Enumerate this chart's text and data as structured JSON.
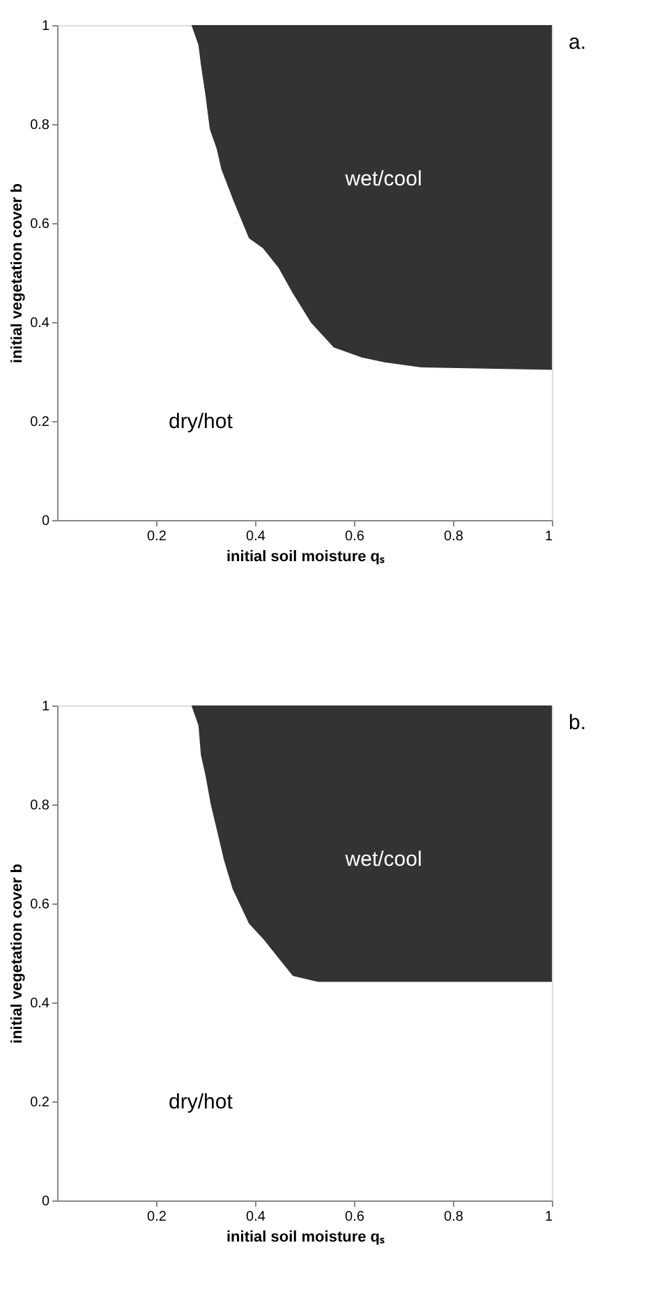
{
  "chart_data": [
    {
      "type": "line",
      "xlabel": "initial soil moisture qₛ",
      "ylabel": "initial vegetation cover b",
      "xlim": [
        0,
        1
      ],
      "ylim": [
        0,
        1
      ],
      "xticks": [
        0.2,
        0.4,
        0.6,
        0.8,
        1
      ],
      "yticks": [
        0,
        0.2,
        0.4,
        0.6,
        0.8,
        1
      ],
      "grid": false,
      "legend": false,
      "marker": "none",
      "series": [
        {
          "color": "#333333",
          "x": [
            0.273,
            0.287,
            0.292,
            0.301,
            0.31,
            0.324,
            0.333,
            0.356,
            0.389,
            0.417,
            0.449,
            0.477,
            0.514,
            0.56,
            0.616,
            0.662,
            0.736,
            1
          ],
          "values": [
            1,
            0.96,
            0.92,
            0.86,
            0.79,
            0.75,
            0.71,
            0.65,
            0.57,
            0.55,
            0.51,
            0.46,
            0.4,
            0.35,
            0.33,
            0.32,
            0.31,
            0.305
          ],
          "lower": [
            1,
            0.96,
            0.92,
            0.86,
            0.79,
            0.75,
            0.71,
            0.65,
            0.57,
            0.55,
            0.51,
            0.46,
            0.4,
            0.35,
            0.33,
            0.32,
            0.31,
            0.305
          ],
          "upper": [
            1,
            1,
            1,
            1,
            1,
            1,
            1,
            1,
            1,
            1,
            1,
            1,
            1,
            1,
            1,
            1,
            1,
            1
          ]
        }
      ],
      "annotations": [
        "a.",
        "wet/cool",
        "dry/hot"
      ]
    },
    {
      "type": "line",
      "xlabel": "initial soil moisture qₛ",
      "ylabel": "initial vegetation cover b",
      "xlim": [
        0,
        1
      ],
      "ylim": [
        0,
        1
      ],
      "xticks": [
        0.2,
        0.4,
        0.6,
        0.8,
        1
      ],
      "yticks": [
        0,
        0.2,
        0.4,
        0.6,
        0.8,
        1
      ],
      "grid": false,
      "legend": false,
      "marker": "none",
      "series": [
        {
          "color": "#333333",
          "x": [
            0.273,
            0.287,
            0.292,
            0.301,
            0.312,
            0.324,
            0.338,
            0.356,
            0.389,
            0.417,
            0.449,
            0.477,
            0.528,
            1
          ],
          "values": [
            1,
            0.96,
            0.9,
            0.86,
            0.8,
            0.75,
            0.69,
            0.63,
            0.56,
            0.53,
            0.49,
            0.455,
            0.443,
            0.443
          ],
          "lower": [
            1,
            0.96,
            0.9,
            0.86,
            0.8,
            0.75,
            0.69,
            0.63,
            0.56,
            0.53,
            0.49,
            0.455,
            0.443,
            0.443
          ],
          "upper": [
            1,
            1,
            1,
            1,
            1,
            1,
            1,
            1,
            1,
            1,
            1,
            1,
            1,
            1
          ]
        }
      ],
      "annotations": [
        "b.",
        "wet/cool",
        "dry/hot"
      ]
    }
  ]
}
